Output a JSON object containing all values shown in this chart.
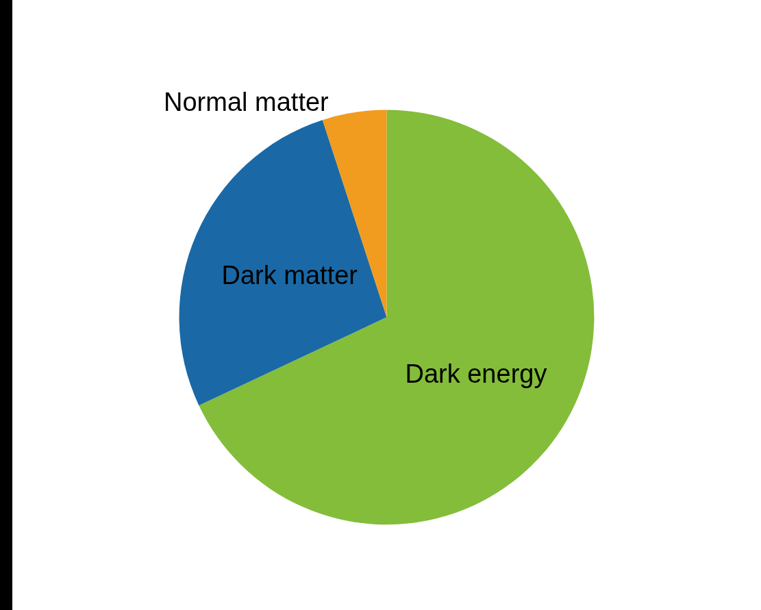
{
  "chart_data": {
    "type": "pie",
    "categories": [
      "Dark energy",
      "Dark matter",
      "Normal matter"
    ],
    "values": [
      68,
      27,
      5
    ],
    "colors": [
      "#84bd3a",
      "#1a69a6",
      "#f19b1f"
    ],
    "legend": false
  }
}
